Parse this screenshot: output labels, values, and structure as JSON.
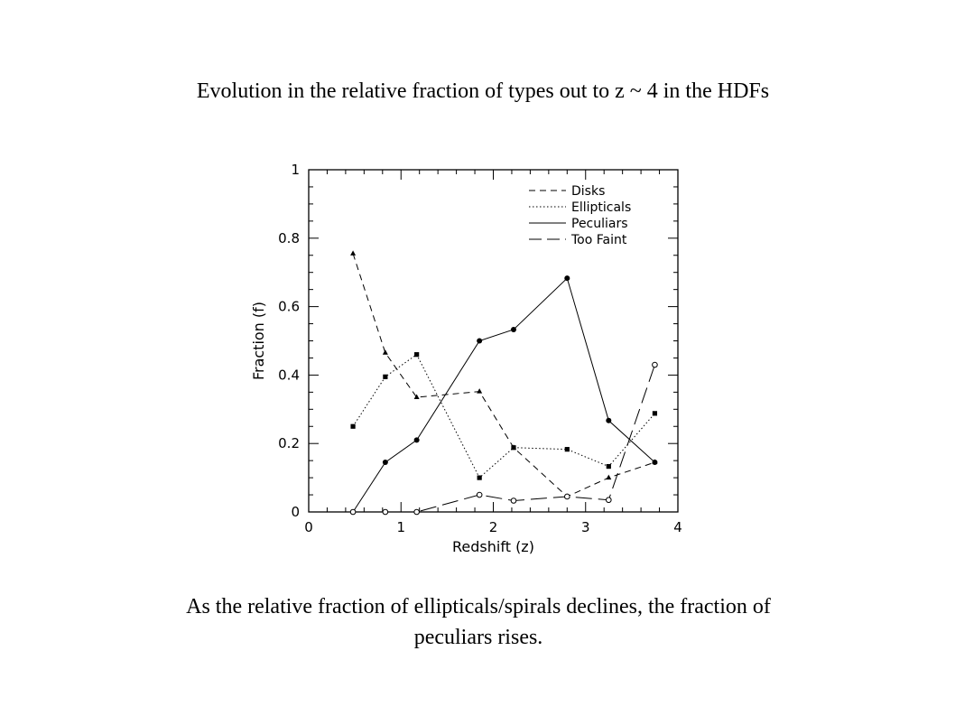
{
  "slide": {
    "title": "Evolution in the relative fraction of types out to z ~ 4 in the HDFs",
    "caption_line1": "As the relative fraction of ellipticals/spirals declines, the fraction of",
    "caption_line2": "peculiars rises."
  },
  "chart_data": {
    "type": "line",
    "title": "",
    "xlabel": "Redshift (z)",
    "ylabel": "Fraction (f)",
    "xlim": [
      0,
      4
    ],
    "ylim": [
      0,
      1
    ],
    "xticks": [
      "0",
      "1",
      "2",
      "3",
      "4"
    ],
    "yticks": [
      "0",
      "0.2",
      "0.4",
      "0.6",
      "0.8",
      "1"
    ],
    "grid": false,
    "legend_position": "top-right",
    "series": [
      {
        "name": "Disks",
        "line_style": "short-dash",
        "marker": "triangle",
        "x": [
          0.48,
          0.83,
          1.17,
          1.85,
          2.22,
          2.8,
          3.25,
          3.75
        ],
        "y": [
          0.755,
          0.465,
          0.335,
          0.352,
          0.188,
          0.045,
          0.1,
          0.145
        ]
      },
      {
        "name": "Ellipticals",
        "line_style": "dotted",
        "marker": "square",
        "x": [
          0.48,
          0.83,
          1.17,
          1.85,
          2.22,
          2.8,
          3.25,
          3.75
        ],
        "y": [
          0.25,
          0.395,
          0.46,
          0.1,
          0.188,
          0.183,
          0.133,
          0.288
        ]
      },
      {
        "name": "Peculiars",
        "line_style": "solid",
        "marker": "filled-circle",
        "x": [
          0.48,
          0.83,
          1.17,
          1.85,
          2.22,
          2.8,
          3.25,
          3.75
        ],
        "y": [
          0.0,
          0.145,
          0.21,
          0.5,
          0.533,
          0.683,
          0.267,
          0.145
        ]
      },
      {
        "name": "Too Faint",
        "line_style": "long-dash",
        "marker": "open-circle",
        "x": [
          0.48,
          0.83,
          1.17,
          1.85,
          2.22,
          2.8,
          3.25,
          3.75
        ],
        "y": [
          0.0,
          0.0,
          0.0,
          0.05,
          0.033,
          0.045,
          0.035,
          0.43
        ]
      }
    ]
  }
}
